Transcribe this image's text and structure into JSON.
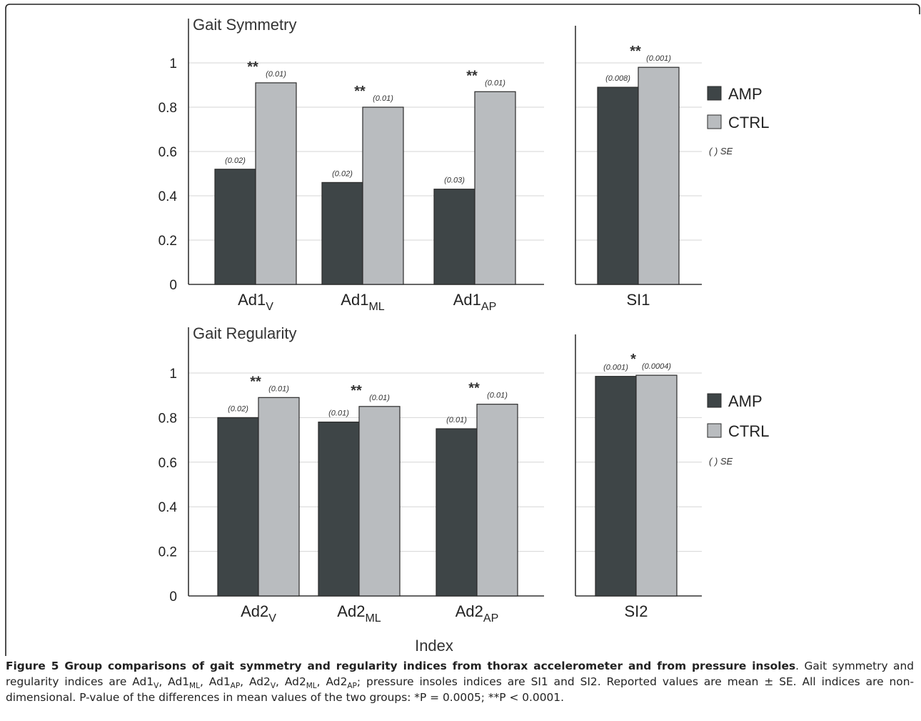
{
  "chart_data": [
    {
      "type": "bar",
      "title": "Gait Symmetry",
      "categories": [
        {
          "base": "Ad1",
          "sub": "V"
        },
        {
          "base": "Ad1",
          "sub": "ML"
        },
        {
          "base": "Ad1",
          "sub": "AP"
        },
        {
          "base": "SI1",
          "sub": ""
        }
      ],
      "series": [
        {
          "name": "AMP",
          "color": "#3e4547",
          "values": [
            0.52,
            0.46,
            0.43,
            0.89
          ],
          "se_labels": [
            "(0.02)",
            "(0.02)",
            "(0.03)",
            "(0.008)"
          ]
        },
        {
          "name": "CTRL",
          "color": "#b9bcbf",
          "values": [
            0.91,
            0.8,
            0.87,
            0.98
          ],
          "se_labels": [
            "(0.01)",
            "(0.01)",
            "(0.01)",
            "(0.001)"
          ]
        }
      ],
      "significance": [
        "**",
        "**",
        "**",
        "**"
      ],
      "y_ticks": [
        "0",
        "0.2",
        "0.4",
        "0.6",
        "0.8",
        "1"
      ],
      "ylim": [
        0,
        1.2
      ],
      "grid": true,
      "legend_position": "right",
      "legend_note": "( ) SE"
    },
    {
      "type": "bar",
      "title": "Gait Regularity",
      "categories": [
        {
          "base": "Ad2",
          "sub": "V"
        },
        {
          "base": "Ad2",
          "sub": "ML"
        },
        {
          "base": "Ad2",
          "sub": "AP"
        },
        {
          "base": "SI2",
          "sub": ""
        }
      ],
      "series": [
        {
          "name": "AMP",
          "color": "#3e4547",
          "values": [
            0.8,
            0.78,
            0.75,
            0.985
          ],
          "se_labels": [
            "(0.02)",
            "(0.01)",
            "(0.01)",
            "(0.001)"
          ]
        },
        {
          "name": "CTRL",
          "color": "#b9bcbf",
          "values": [
            0.89,
            0.85,
            0.86,
            0.99
          ],
          "se_labels": [
            "(0.01)",
            "(0.01)",
            "(0.01)",
            "(0.0004)"
          ]
        }
      ],
      "significance": [
        "**",
        "**",
        "**",
        "*"
      ],
      "y_ticks": [
        "0",
        "0.2",
        "0.4",
        "0.6",
        "0.8",
        "1"
      ],
      "ylim": [
        0,
        1.2
      ],
      "grid": true,
      "legend_position": "right",
      "legend_note": "( ) SE"
    }
  ],
  "xlabel": "Index",
  "caption": {
    "figure_label": "Figure 5",
    "title": "Group comparisons of gait symmetry and regularity indices from thorax accelerometer and from pressure insoles",
    "body": [
      {
        "t": ". Gait symmetry and regularity indices are Ad1"
      },
      {
        "sub": "V"
      },
      {
        "t": ", Ad1"
      },
      {
        "sub": "ML"
      },
      {
        "t": ", Ad1"
      },
      {
        "sub": "AP"
      },
      {
        "t": ", Ad2"
      },
      {
        "sub": "V"
      },
      {
        "t": ", Ad2"
      },
      {
        "sub": "ML"
      },
      {
        "t": ", Ad2"
      },
      {
        "sub": "AP"
      },
      {
        "t": "; pressure insoles indices are SI1 and SI2. Reported values are mean ± SE. All indices are non-dimensional. P-value of the differences in mean values of the two groups: *P = 0.0005; **P < 0.0001."
      }
    ]
  }
}
